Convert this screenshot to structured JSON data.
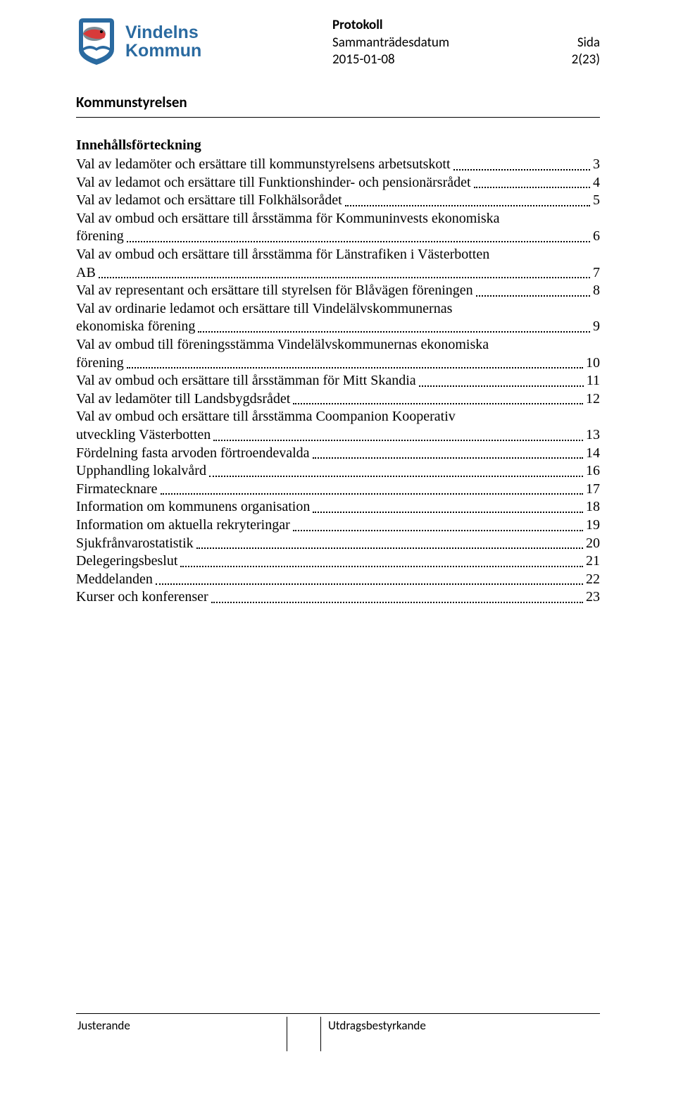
{
  "header": {
    "logo": {
      "line1": "Vindelns",
      "line2": "Kommun",
      "brand_color": "#2a6aa0"
    },
    "protokoll": "Protokoll",
    "meta_label": "Sammanträdesdatum",
    "sida_label": "Sida",
    "date": "2015-01-08",
    "page_ref": "2(23)"
  },
  "section_title": "Kommunstyrelsen",
  "toc_heading": "Innehållsförteckning",
  "toc": [
    {
      "label": "Val av ledamöter och ersättare till kommunstyrelsens arbetsutskott",
      "page": "3"
    },
    {
      "label": "Val av ledamot och ersättare till Funktionshinder- och pensionärsrådet",
      "page": "4"
    },
    {
      "label": "Val av ledamot och ersättare till Folkhälsorådet",
      "page": "5"
    },
    {
      "first": "Val av ombud och ersättare till årsstämma för Kommuninvests ekonomiska",
      "second": "förening",
      "page": "6"
    },
    {
      "first": "Val av ombud och ersättare till årsstämma för Länstrafiken i Västerbotten",
      "second": "AB",
      "page": "7"
    },
    {
      "label": "Val av representant och ersättare till styrelsen för Blåvägen föreningen",
      "page": "8"
    },
    {
      "first": "Val av ordinarie ledamot och ersättare till Vindelälvskommunernas",
      "second": "ekonomiska förening",
      "page": "9"
    },
    {
      "first": "Val av ombud till föreningsstämma Vindelälvskommunernas ekonomiska",
      "second": "förening",
      "page": "10"
    },
    {
      "label": "Val av ombud och ersättare till årsstämman för Mitt Skandia",
      "page": "11"
    },
    {
      "label": "Val av ledamöter till Landsbygdsrådet",
      "page": "12"
    },
    {
      "first": "Val av ombud och ersättare till årsstämma Coompanion Kooperativ",
      "second": "utveckling Västerbotten",
      "page": "13"
    },
    {
      "label": "Fördelning fasta arvoden förtroendevalda",
      "page": "14"
    },
    {
      "label": "Upphandling lokalvård",
      "page": "16"
    },
    {
      "label": "Firmatecknare",
      "page": "17"
    },
    {
      "label": "Information om kommunens organisation",
      "page": "18"
    },
    {
      "label": "Information om aktuella rekryteringar",
      "page": "19"
    },
    {
      "label": "Sjukfrånvarostatistik",
      "page": "20"
    },
    {
      "label": "Delegeringsbeslut",
      "page": "21"
    },
    {
      "label": "Meddelanden",
      "page": "22"
    },
    {
      "label": "Kurser och konferenser",
      "page": "23"
    }
  ],
  "footer": {
    "left": "Justerande",
    "right": "Utdragsbestyrkande"
  }
}
